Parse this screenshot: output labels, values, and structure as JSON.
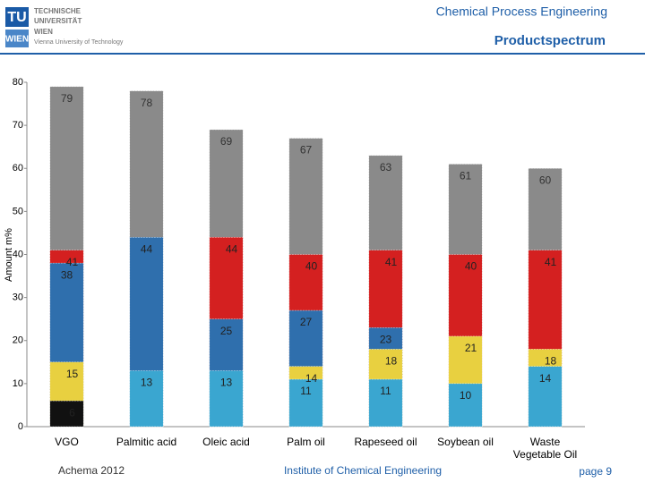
{
  "header": {
    "department": "Chemical Process Engineering",
    "title": "Productspectrum",
    "logo_letters": [
      "TU",
      "WIEN"
    ],
    "logo_lines": [
      "TECHNISCHE",
      "UNIVERSITÄT",
      "WIEN",
      "Vienna University of Technology"
    ]
  },
  "chart_data": {
    "type": "bar",
    "ylabel": "Amount m%",
    "categories": [
      "VGO",
      "Palmitic acid",
      "Oleic acid",
      "Palm oil",
      "Rapeseed oil",
      "Soybean oil",
      "Waste Vegetable Oil"
    ],
    "ylim": [
      0,
      80
    ],
    "yticks": [
      0,
      10,
      20,
      30,
      40,
      50,
      60,
      70,
      80
    ],
    "series": [
      {
        "color": "#8a8a8a",
        "values": [
          79,
          78,
          69,
          67,
          63,
          61,
          60
        ]
      },
      {
        "color": "#d42020",
        "values": [
          41,
          null,
          44,
          40,
          41,
          40,
          41
        ]
      },
      {
        "color": "#2f6fad",
        "values": [
          38,
          44,
          25,
          27,
          23,
          null,
          null
        ]
      },
      {
        "color": "#e8d040",
        "values": [
          15,
          null,
          null,
          14,
          18,
          21,
          18
        ]
      },
      {
        "color": "#3aa6d0",
        "values": [
          null,
          13,
          13,
          11,
          11,
          10,
          14
        ]
      },
      {
        "color": "#111111",
        "values": [
          6,
          null,
          null,
          null,
          null,
          null,
          null
        ]
      }
    ]
  },
  "footer": {
    "left": "Achema 2012",
    "center": "Institute of Chemical Engineering",
    "page": "page 9"
  }
}
